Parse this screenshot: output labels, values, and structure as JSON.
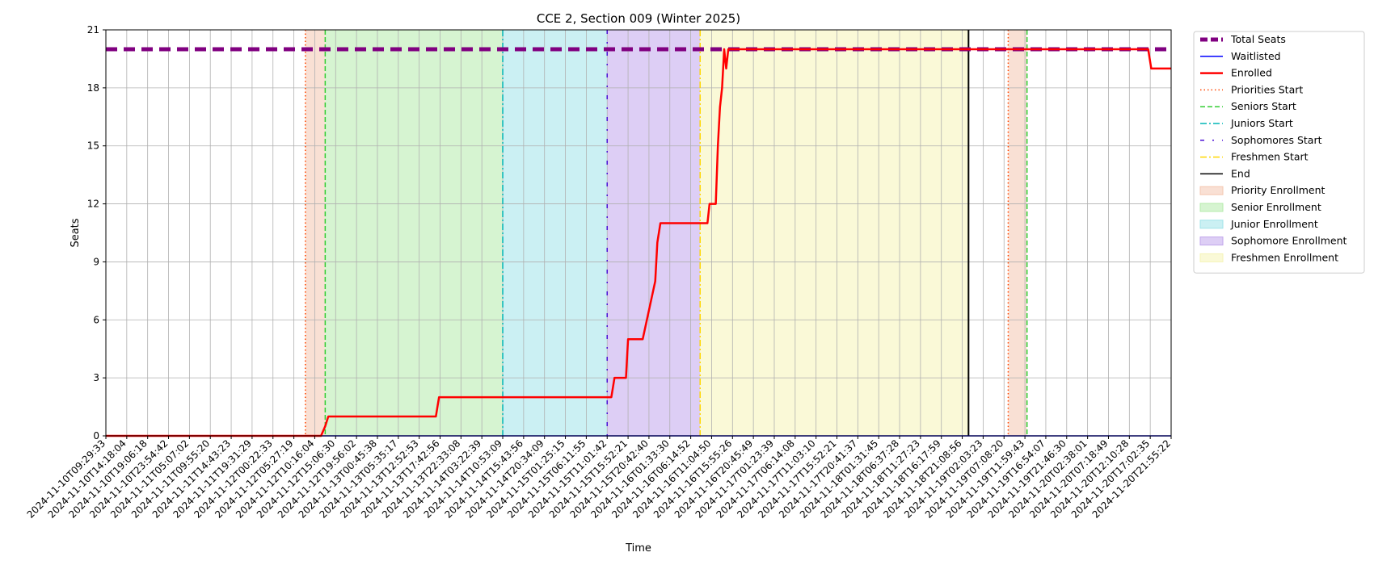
{
  "chart_data": {
    "type": "line",
    "title": "CCE 2, Section 009 (Winter 2025)",
    "xlabel": "Time",
    "ylabel": "Seats",
    "ylim": [
      0,
      21
    ],
    "yticks": [
      0,
      3,
      6,
      9,
      12,
      15,
      18,
      21
    ],
    "grid": true,
    "legend_position": "outside-right",
    "x_tick_labels": [
      "2024-11-10T09:29:33",
      "2024-11-10T14:18:04",
      "2024-11-10T19:06:18",
      "2024-11-10T23:54:42",
      "2024-11-11T05:07:02",
      "2024-11-11T09:55:20",
      "2024-11-11T14:43:23",
      "2024-11-11T19:31:29",
      "2024-11-12T00:22:33",
      "2024-11-12T05:27:19",
      "2024-11-12T10:16:04",
      "2024-11-12T15:06:30",
      "2024-11-12T19:56:02",
      "2024-11-13T00:45:38",
      "2024-11-13T05:35:17",
      "2024-11-13T12:52:53",
      "2024-11-13T17:42:56",
      "2024-11-13T22:33:08",
      "2024-11-14T03:22:39",
      "2024-11-14T10:53:09",
      "2024-11-14T15:43:56",
      "2024-11-14T20:34:09",
      "2024-11-15T01:25:15",
      "2024-11-15T06:11:55",
      "2024-11-15T11:01:42",
      "2024-11-15T15:52:21",
      "2024-11-15T20:42:40",
      "2024-11-16T01:33:30",
      "2024-11-16T06:14:52",
      "2024-11-16T11:04:50",
      "2024-11-16T15:55:26",
      "2024-11-16T20:45:49",
      "2024-11-17T01:23:39",
      "2024-11-17T06:14:08",
      "2024-11-17T11:03:10",
      "2024-11-17T15:52:21",
      "2024-11-17T20:41:37",
      "2024-11-18T01:31:45",
      "2024-11-18T06:37:28",
      "2024-11-18T11:27:23",
      "2024-11-18T16:17:59",
      "2024-11-18T21:08:56",
      "2024-11-19T02:03:23",
      "2024-11-19T07:08:20",
      "2024-11-19T11:59:43",
      "2024-11-19T16:54:07",
      "2024-11-19T21:46:30",
      "2024-11-20T02:38:01",
      "2024-11-20T07:18:49",
      "2024-11-20T12:10:28",
      "2024-11-20T17:02:35",
      "2024-11-20T21:55:22"
    ],
    "series": [
      {
        "name": "Total Seats",
        "color": "#800080",
        "style": "dashed-thick",
        "points": [
          [
            0,
            20
          ],
          [
            51,
            20
          ]
        ]
      },
      {
        "name": "Waitlisted",
        "color": "#0000ff",
        "style": "solid",
        "points": [
          [
            0,
            0
          ],
          [
            51,
            0
          ]
        ]
      },
      {
        "name": "Enrolled",
        "color": "#ff0000",
        "style": "solid",
        "points": [
          [
            0,
            0
          ],
          [
            10.3,
            0
          ],
          [
            10.5,
            0.5
          ],
          [
            10.65,
            1
          ],
          [
            15.8,
            1
          ],
          [
            15.95,
            2
          ],
          [
            24.2,
            2
          ],
          [
            24.35,
            3
          ],
          [
            24.9,
            3
          ],
          [
            25.0,
            5
          ],
          [
            25.7,
            5
          ],
          [
            26.3,
            8
          ],
          [
            26.4,
            10
          ],
          [
            26.55,
            11
          ],
          [
            28.8,
            11
          ],
          [
            28.9,
            12
          ],
          [
            29.2,
            12
          ],
          [
            29.3,
            15
          ],
          [
            29.4,
            17
          ],
          [
            29.5,
            18
          ],
          [
            29.6,
            20
          ],
          [
            29.7,
            19
          ],
          [
            29.8,
            20
          ],
          [
            49.9,
            20
          ],
          [
            50.05,
            19
          ],
          [
            51,
            19
          ]
        ]
      }
    ],
    "phases": [
      {
        "name": "Priority Enrollment",
        "start": 9.55,
        "end": 10.5,
        "color": "#f4c7b0"
      },
      {
        "name": "Senior Enrollment",
        "start": 10.5,
        "end": 19.0,
        "color": "#b5ebac"
      },
      {
        "name": "Junior Enrollment",
        "start": 19.0,
        "end": 24.0,
        "color": "#a0e3e9"
      },
      {
        "name": "Sophomore Enrollment",
        "start": 24.0,
        "end": 28.45,
        "color": "#c1a6ec"
      },
      {
        "name": "Freshmen Enrollment",
        "start": 28.45,
        "end": 41.3,
        "color": "#f5f4b7"
      },
      {
        "name": "Priority Enrollment",
        "start": 43.2,
        "end": 44.1,
        "color": "#f4c7b0"
      }
    ],
    "markers": [
      {
        "name": "Priorities Start",
        "x": 9.55,
        "color": "#ff4500",
        "style": "dotted"
      },
      {
        "name": "Seniors Start",
        "x": 10.5,
        "color": "#32cd32",
        "style": "dashed"
      },
      {
        "name": "Juniors Start",
        "x": 19.0,
        "color": "#00b5b5",
        "style": "dashdot"
      },
      {
        "name": "Sophomores Start",
        "x": 24.0,
        "color": "#4b0fd6",
        "style": "loose"
      },
      {
        "name": "Freshmen Start",
        "x": 28.45,
        "color": "#ffd700",
        "style": "dashdot"
      },
      {
        "name": "End",
        "x": 41.3,
        "color": "#000000",
        "style": "solid"
      },
      {
        "name": "Priorities Start",
        "x": 43.2,
        "color": "#ff4500",
        "style": "dotted"
      },
      {
        "name": "Seniors Start",
        "x": 44.1,
        "color": "#32cd32",
        "style": "dashed"
      }
    ],
    "legend": [
      {
        "label": "Total Seats",
        "kind": "line",
        "color": "#800080",
        "style": "dashed-thick"
      },
      {
        "label": "Waitlisted",
        "kind": "line",
        "color": "#0000ff",
        "style": "solid"
      },
      {
        "label": "Enrolled",
        "kind": "line",
        "color": "#ff0000",
        "style": "solid-thick"
      },
      {
        "label": "Priorities Start",
        "kind": "line",
        "color": "#ff4500",
        "style": "dotted"
      },
      {
        "label": "Seniors Start",
        "kind": "line",
        "color": "#32cd32",
        "style": "dashed"
      },
      {
        "label": "Juniors Start",
        "kind": "line",
        "color": "#00b5b5",
        "style": "dashdot"
      },
      {
        "label": "Sophomores Start",
        "kind": "line",
        "color": "#4b0fd6",
        "style": "loose"
      },
      {
        "label": "Freshmen Start",
        "kind": "line",
        "color": "#ffd700",
        "style": "dashdot"
      },
      {
        "label": "End",
        "kind": "line",
        "color": "#000000",
        "style": "solid"
      },
      {
        "label": "Priority Enrollment",
        "kind": "patch",
        "color": "#f4c7b0"
      },
      {
        "label": "Senior Enrollment",
        "kind": "patch",
        "color": "#b5ebac"
      },
      {
        "label": "Junior Enrollment",
        "kind": "patch",
        "color": "#a0e3e9"
      },
      {
        "label": "Sophomore Enrollment",
        "kind": "patch",
        "color": "#c1a6ec"
      },
      {
        "label": "Freshmen Enrollment",
        "kind": "patch",
        "color": "#f5f4b7"
      }
    ]
  }
}
